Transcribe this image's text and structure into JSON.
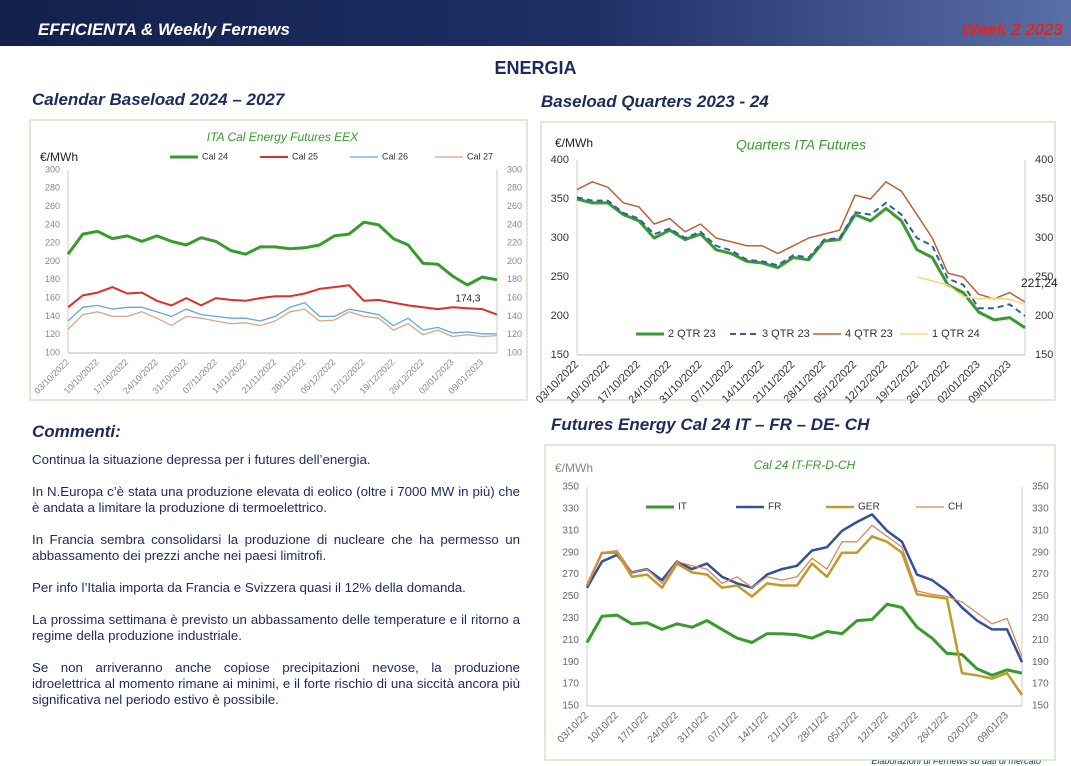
{
  "header": {
    "title": "EFFICIENTA & Weekly Fernews",
    "week": "Week 2 2023"
  },
  "section_title": "ENERGIA",
  "comments": {
    "title": "Commenti:",
    "paragraphs": [
      "Continua la situazione depressa per i futures dell’energia.",
      "In N.Europa c’è stata una produzione elevata di eolico (oltre i 7000 MW in più) che è andata a limitare la produzione di termoelettrico.",
      "In Francia sembra consolidarsi la produzione di nucleare che ha permesso un abbassamento dei prezzi anche nei paesi limitrofi.",
      "Per info l’Italia importa da Francia e Svizzera quasi il 12% della domanda.",
      "La prossima settimana è previsto un abbassamento delle temperature e il ritorno a regime della produzione industriale.",
      "Se non arriveranno anche copiose precipitazioni nevose, la produzione idroelettrica al momento rimane ai minimi, e il forte rischio di una siccità ancora più significativa nel periodo estivo è possibile."
    ]
  },
  "footer": "Elaborazioni di Fernews su dati di mercato",
  "chart_data": [
    {
      "type": "line",
      "heading": "Calendar Baseload 2024 – 2027",
      "title": "ITA Cal  Energy Futures EEX",
      "y_label": "€/MWh",
      "annotation": "174,3",
      "legend": "top",
      "grid": false,
      "categories": [
        "03/10/2022",
        null,
        "10/10/2022",
        null,
        "17/10/2022",
        null,
        "24/10/2022",
        null,
        "31/10/2022",
        null,
        "07/11/2022",
        null,
        "14/11/2022",
        null,
        "21/11/2022",
        null,
        "28/11/2022",
        null,
        "05/12/2022",
        null,
        "12/12/2022",
        null,
        "19/12/2022",
        null,
        "26/12/2022",
        null,
        "02/01/2023",
        null,
        "09/01/2023",
        null
      ],
      "ylim": [
        100,
        300
      ],
      "yticks": [
        100,
        120,
        140,
        160,
        180,
        200,
        220,
        240,
        260,
        280,
        300
      ],
      "series": [
        {
          "name": "Cal 24",
          "color": "#3a9a2e",
          "width": 3,
          "values": [
            208,
            230,
            233,
            225,
            228,
            222,
            228,
            222,
            218,
            226,
            222,
            212,
            208,
            216,
            216,
            214,
            215,
            218,
            228,
            230,
            243,
            240,
            225,
            218,
            198,
            197,
            184,
            174.3,
            183,
            180
          ]
        },
        {
          "name": "Cal 25",
          "color": "#d9302a",
          "width": 2,
          "values": [
            150,
            163,
            166,
            172,
            165,
            166,
            157,
            152,
            160,
            152,
            160,
            158,
            157,
            160,
            162,
            162,
            165,
            170,
            172,
            174,
            157,
            158,
            155,
            152,
            150,
            148,
            150,
            149,
            148,
            142
          ]
        },
        {
          "name": "Cal 26",
          "color": "#62a8dc",
          "width": 1.3,
          "values": [
            135,
            150,
            152,
            148,
            150,
            150,
            145,
            140,
            148,
            142,
            140,
            138,
            138,
            135,
            140,
            150,
            155,
            140,
            140,
            148,
            145,
            142,
            130,
            138,
            125,
            128,
            122,
            123,
            121,
            121
          ]
        },
        {
          "name": "Cal 27",
          "color": "#d9a58a",
          "width": 1.3,
          "values": [
            126,
            142,
            145,
            140,
            140,
            145,
            138,
            130,
            140,
            138,
            135,
            132,
            133,
            130,
            135,
            145,
            148,
            135,
            136,
            145,
            140,
            138,
            125,
            132,
            120,
            125,
            118,
            120,
            118,
            119
          ]
        }
      ]
    },
    {
      "type": "line",
      "heading": "Baseload Quarters 2023 - 24",
      "title": "Quarters ITA Futures",
      "y_label": "€/MWh",
      "annotation": "221,24",
      "legend": "bottom",
      "grid": false,
      "categories": [
        "03/10/2022",
        null,
        "10/10/2022",
        null,
        "17/10/2022",
        null,
        "24/10/2022",
        null,
        "31/10/2022",
        null,
        "07/11/2022",
        null,
        "14/11/2022",
        null,
        "21/11/2022",
        null,
        "28/11/2022",
        null,
        "05/12/2022",
        null,
        "12/12/2022",
        null,
        "19/12/2022",
        null,
        "26/12/2022",
        null,
        "02/01/2023",
        null,
        "09/01/2023",
        null
      ],
      "ylim": [
        150,
        400
      ],
      "yticks": [
        150,
        200,
        250,
        300,
        350,
        400
      ],
      "series": [
        {
          "name": "2 QTR 23",
          "color": "#3a9a2e",
          "width": 3,
          "values": [
            350,
            345,
            345,
            330,
            322,
            300,
            310,
            298,
            305,
            285,
            280,
            270,
            268,
            262,
            275,
            272,
            296,
            298,
            330,
            322,
            338,
            322,
            285,
            275,
            240,
            230,
            205,
            195,
            198,
            185
          ]
        },
        {
          "name": "3 QTR 23",
          "color": "#2e5fa8",
          "width": 2,
          "dash": true,
          "values": [
            352,
            348,
            348,
            332,
            325,
            305,
            312,
            300,
            308,
            290,
            284,
            272,
            270,
            265,
            278,
            275,
            298,
            300,
            333,
            330,
            345,
            330,
            300,
            290,
            248,
            240,
            210,
            210,
            215,
            200
          ]
        },
        {
          "name": "4 QTR 23",
          "color": "#b5643a",
          "width": 1.5,
          "values": [
            362,
            372,
            365,
            345,
            340,
            318,
            325,
            308,
            318,
            300,
            295,
            290,
            290,
            280,
            290,
            300,
            305,
            310,
            355,
            350,
            372,
            360,
            330,
            300,
            255,
            250,
            228,
            222,
            230,
            218
          ]
        },
        {
          "name": "1 QTR 24",
          "color": "#f5d77a",
          "width": 1.5,
          "values": [
            null,
            null,
            null,
            null,
            null,
            null,
            null,
            null,
            null,
            null,
            null,
            null,
            null,
            null,
            null,
            null,
            null,
            null,
            null,
            null,
            null,
            null,
            250,
            245,
            240,
            225,
            222,
            223,
            221.24,
            215
          ]
        }
      ]
    },
    {
      "type": "line",
      "heading": "Futures Energy Cal 24 IT – FR – DE- CH",
      "title": "Cal 24  IT-FR-D-CH",
      "y_label": "€/MWh",
      "legend": "top",
      "grid": false,
      "categories": [
        "03/10/22",
        null,
        "10/10/22",
        null,
        "17/10/22",
        null,
        "24/10/22",
        null,
        "31/10/22",
        null,
        "07/11/22",
        null,
        "14/11/22",
        null,
        "21/11/22",
        null,
        "28/11/22",
        null,
        "05/12/22",
        null,
        "12/12/22",
        null,
        "19/12/22",
        null,
        "26/12/22",
        null,
        "02/01/23",
        null,
        "09/01/23",
        null
      ],
      "ylim": [
        150,
        350
      ],
      "yticks": [
        150,
        170,
        190,
        210,
        230,
        250,
        270,
        290,
        310,
        330,
        350
      ],
      "series": [
        {
          "name": "IT",
          "color": "#3a9a2e",
          "width": 3,
          "values": [
            208,
            232,
            233,
            225,
            226,
            220,
            225,
            222,
            228,
            220,
            212,
            208,
            216,
            216,
            215,
            212,
            218,
            216,
            228,
            229,
            243,
            240,
            222,
            212,
            198,
            197,
            184,
            178,
            183,
            180
          ]
        },
        {
          "name": "FR",
          "color": "#34509a",
          "width": 2.5,
          "values": [
            258,
            282,
            288,
            272,
            275,
            265,
            282,
            275,
            280,
            268,
            262,
            258,
            270,
            275,
            278,
            292,
            295,
            310,
            318,
            325,
            310,
            300,
            270,
            265,
            255,
            240,
            228,
            220,
            220,
            190
          ]
        },
        {
          "name": "GER",
          "color": "#c09a2a",
          "width": 2.5,
          "values": [
            260,
            290,
            290,
            268,
            270,
            258,
            280,
            272,
            270,
            258,
            260,
            250,
            262,
            260,
            260,
            280,
            268,
            290,
            290,
            305,
            300,
            290,
            252,
            250,
            248,
            180,
            178,
            175,
            180,
            160
          ]
        },
        {
          "name": "CH",
          "color": "#d9885a",
          "width": 1.3,
          "values": [
            260,
            290,
            292,
            272,
            275,
            262,
            282,
            278,
            275,
            262,
            268,
            258,
            268,
            265,
            268,
            285,
            275,
            300,
            300,
            315,
            305,
            295,
            255,
            252,
            250,
            245,
            235,
            225,
            230,
            195
          ]
        }
      ]
    }
  ]
}
